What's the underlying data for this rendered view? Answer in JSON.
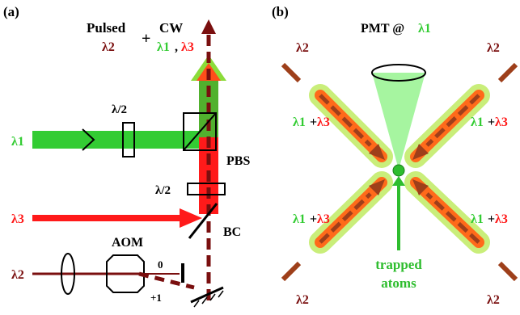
{
  "colors": {
    "lambda1_green": "#33cc33",
    "lambda1_light": "#b9ef8f",
    "lambda3_red": "#ff1a1a",
    "lambda2_darkred": "#7a0f0f",
    "lambda2_pulse": "#9e3f1a",
    "pmt_cone": "#a6f5a0",
    "atoms": "#2ebd2e",
    "text_dark": "#000000"
  },
  "panel_a": {
    "tag": "(a)",
    "pulsed_label": "Pulsed",
    "pulsed_lambda": "λ2",
    "plus": "+",
    "cw_label": "CW",
    "cw_l1": "λ1",
    "cw_comma": ",",
    "cw_l3": "λ3",
    "l1_input": "λ1",
    "l3_input": "λ3",
    "l2_input": "λ2",
    "halfwave_top": "λ/2",
    "halfwave_mid": "λ/2",
    "pbs": "PBS",
    "bc": "BC",
    "aom": "AOM",
    "order_zero": "0",
    "order_plus_one": "+1"
  },
  "panel_b": {
    "tag": "(b)",
    "pmt_label": "PMT @",
    "pmt_lambda": "λ1",
    "beam_label_l1": "λ1",
    "beam_label_plus": "+",
    "beam_label_l3": "λ3",
    "pulse_label": "λ2",
    "atoms_line1": "trapped",
    "atoms_line2": "atoms"
  }
}
